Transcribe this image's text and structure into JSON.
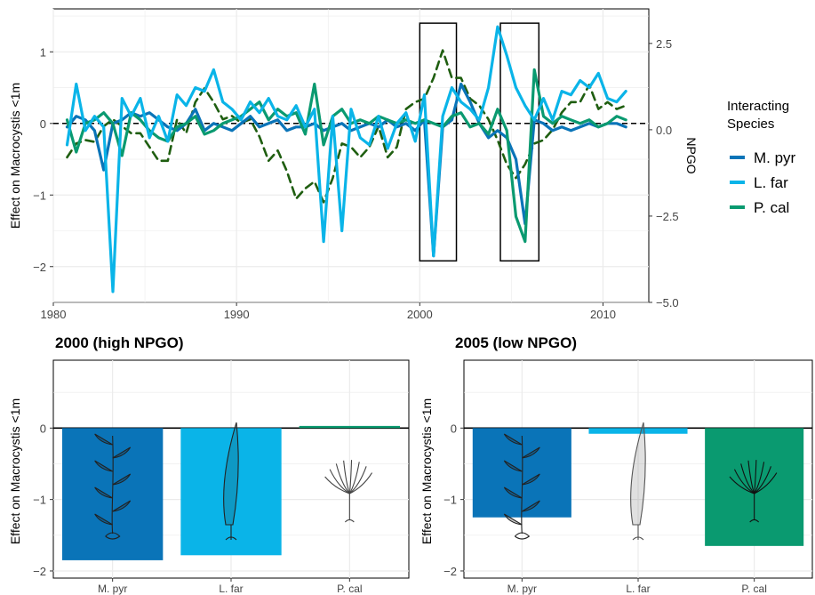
{
  "colors": {
    "mpyr": "#0a74b8",
    "lfar": "#0ab4e8",
    "pcal": "#0a9a70",
    "npgo": "#1f5e10",
    "grid": "#ebebeb",
    "axis": "#000000"
  },
  "chart_data": [
    {
      "id": "timeseries",
      "type": "line",
      "xlabel": "",
      "ylabel": "Effect on Macrocystis <1m",
      "y2label": "NPGO",
      "xlim": [
        1980,
        2012.5
      ],
      "ylim": [
        -2.5,
        1.6
      ],
      "y2lim": [
        -5.0,
        3.5
      ],
      "xticks": [
        "1980",
        "1990",
        "2000",
        "2010"
      ],
      "yticks": [
        "1",
        "0",
        "−1",
        "−2"
      ],
      "y2ticks": [
        "2.5",
        "0.0",
        "−2.5",
        "−5.0"
      ],
      "grid": true,
      "zero_line": "dashed",
      "legend": {
        "title": [
          "Interacting",
          "Species"
        ],
        "position": "right",
        "entries": [
          "M. pyr",
          "L. far",
          "P. cal"
        ]
      },
      "highlight_boxes": [
        {
          "x": [
            2000.0,
            2002.0
          ],
          "y": [
            -1.92,
            1.4
          ]
        },
        {
          "x": [
            2004.4,
            2006.5
          ],
          "y": [
            -1.92,
            1.4
          ]
        }
      ],
      "x": [
        1980.75,
        1981.25,
        1981.75,
        1982.25,
        1982.75,
        1983.25,
        1983.75,
        1984.25,
        1984.75,
        1985.25,
        1985.75,
        1986.25,
        1986.75,
        1987.25,
        1987.75,
        1988.25,
        1988.75,
        1989.25,
        1989.75,
        1990.25,
        1990.75,
        1991.25,
        1991.75,
        1992.25,
        1992.75,
        1993.25,
        1993.75,
        1994.25,
        1994.75,
        1995.25,
        1995.75,
        1996.25,
        1996.75,
        1997.25,
        1997.75,
        1998.25,
        1998.75,
        1999.25,
        1999.75,
        2000.25,
        2000.75,
        2001.25,
        2001.75,
        2002.25,
        2002.75,
        2003.25,
        2003.75,
        2004.25,
        2004.75,
        2005.25,
        2005.75,
        2006.25,
        2006.75,
        2007.25,
        2007.75,
        2008.25,
        2008.75,
        2009.25,
        2009.75,
        2010.25,
        2010.75,
        2011.25
      ],
      "series": [
        {
          "name": "M. pyr",
          "axis": "left",
          "values": [
            -0.05,
            0.1,
            0.05,
            -0.1,
            -0.65,
            0.0,
            0.05,
            0.15,
            0.1,
            0.15,
            0.05,
            -0.05,
            -0.1,
            0.0,
            0.2,
            -0.1,
            0.0,
            -0.05,
            -0.1,
            0.0,
            0.1,
            -0.05,
            0.0,
            0.05,
            -0.1,
            -0.05,
            -0.05,
            0.0,
            -0.1,
            -0.05,
            0.0,
            -0.1,
            -0.05,
            0.0,
            -0.05,
            0.05,
            -0.05,
            0.0,
            -0.1,
            0.05,
            -1.85,
            -0.05,
            0.05,
            0.55,
            0.3,
            0.0,
            -0.2,
            -0.1,
            -0.2,
            -0.5,
            -1.4,
            0.05,
            0.0,
            -0.1,
            -0.05,
            -0.1,
            -0.05,
            0.0,
            -0.05,
            0.0,
            0.0,
            -0.05
          ]
        },
        {
          "name": "L. far",
          "axis": "left",
          "values": [
            -0.3,
            0.55,
            -0.1,
            0.1,
            -0.05,
            -2.35,
            0.35,
            0.1,
            0.35,
            -0.2,
            0.1,
            -0.25,
            0.4,
            0.25,
            0.5,
            0.45,
            0.75,
            0.3,
            0.2,
            0.05,
            0.3,
            0.15,
            0.35,
            0.1,
            0.05,
            0.25,
            -0.05,
            0.2,
            -1.65,
            0.1,
            -1.5,
            0.2,
            -0.2,
            -0.3,
            0.1,
            -0.35,
            0.0,
            0.15,
            -0.25,
            0.4,
            -1.85,
            0.1,
            0.5,
            0.3,
            0.2,
            0.05,
            0.5,
            1.35,
            0.95,
            0.5,
            0.25,
            0.05,
            0.35,
            0.05,
            0.45,
            0.4,
            0.6,
            0.5,
            0.7,
            0.35,
            0.3,
            0.45
          ]
        },
        {
          "name": "P. cal",
          "axis": "left",
          "values": [
            0.05,
            -0.4,
            0.0,
            0.05,
            0.15,
            0.0,
            -0.45,
            0.15,
            0.05,
            -0.1,
            -0.2,
            -0.25,
            -0.05,
            0.0,
            0.1,
            -0.15,
            -0.1,
            0.0,
            0.05,
            0.1,
            0.2,
            0.3,
            0.05,
            0.2,
            0.1,
            0.15,
            -0.15,
            0.55,
            -0.3,
            0.1,
            0.2,
            0.0,
            0.05,
            0.0,
            0.1,
            0.05,
            0.0,
            0.05,
            0.0,
            0.05,
            0.0,
            -0.05,
            0.1,
            0.15,
            -0.05,
            0.0,
            -0.15,
            0.2,
            -0.1,
            -1.3,
            -1.65,
            0.75,
            0.1,
            0.0,
            0.1,
            0.05,
            0.0,
            0.05,
            -0.05,
            0.0,
            0.1,
            0.05
          ]
        },
        {
          "name": "NPGO",
          "axis": "right",
          "style": "dashed",
          "values": [
            -0.8,
            -0.4,
            -0.3,
            -0.35,
            0.1,
            0.3,
            0.1,
            -0.1,
            -0.1,
            -0.5,
            -0.9,
            -0.9,
            0.3,
            -0.1,
            0.8,
            1.2,
            0.8,
            0.3,
            0.4,
            0.2,
            0.3,
            -0.2,
            -0.9,
            -0.6,
            -1.2,
            -2.0,
            -1.7,
            -1.5,
            -2.1,
            -1.4,
            -0.4,
            -0.5,
            -0.8,
            -0.5,
            0.1,
            -0.8,
            -0.5,
            0.6,
            0.8,
            0.9,
            1.5,
            2.3,
            1.5,
            1.5,
            0.9,
            0.7,
            0.3,
            -0.3,
            -1.0,
            -1.4,
            -1.0,
            -0.4,
            -0.3,
            0.0,
            0.5,
            0.8,
            0.8,
            1.3,
            0.6,
            0.8,
            0.6,
            0.7
          ]
        }
      ]
    },
    {
      "id": "bars_2000",
      "type": "bar",
      "title": "2000 (high NPGO)",
      "ylabel": "Effect on Macrocystis <1m",
      "categories": [
        "M. pyr",
        "L. far",
        "P. cal"
      ],
      "values": [
        -1.85,
        -1.78,
        0.03
      ],
      "ylim": [
        -2.1,
        0.95
      ],
      "yticks": [
        "0",
        "−1",
        "−2"
      ],
      "grid": true
    },
    {
      "id": "bars_2005",
      "type": "bar",
      "title": "2005 (low NPGO)",
      "ylabel": "Effect on Macrocystis <1m",
      "categories": [
        "M. pyr",
        "L. far",
        "P. cal"
      ],
      "values": [
        -1.25,
        -0.08,
        -1.65
      ],
      "ylim": [
        -2.1,
        0.95
      ],
      "yticks": [
        "0",
        "−1",
        "−2"
      ],
      "grid": true
    }
  ]
}
